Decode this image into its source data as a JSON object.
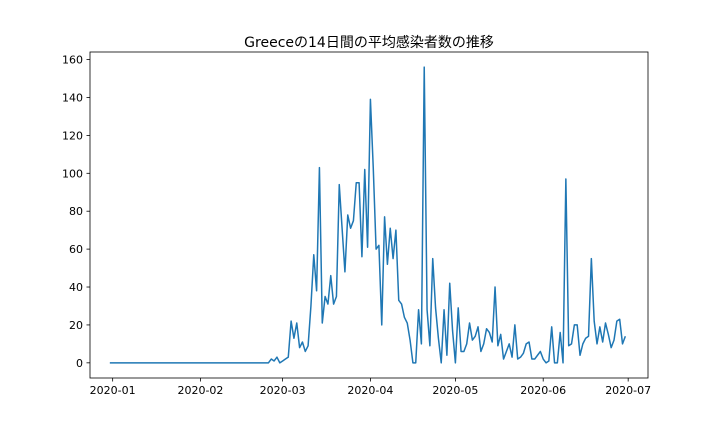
{
  "chart_data": {
    "type": "line",
    "title": "Greeceの14日間の平均感染者数の推移",
    "xlabel": "",
    "ylabel": "",
    "xlim": [
      "2019-12-24",
      "2020-07-08"
    ],
    "ylim": [
      -8,
      164
    ],
    "x_ticks": [
      "2020-01-01",
      "2020-02-01",
      "2020-03-01",
      "2020-04-01",
      "2020-05-01",
      "2020-06-01",
      "2020-07-01"
    ],
    "x_tick_labels": [
      "2020-01",
      "2020-02",
      "2020-03",
      "2020-04",
      "2020-05",
      "2020-06",
      "2020-07"
    ],
    "y_ticks": [
      0,
      20,
      40,
      60,
      80,
      100,
      120,
      140,
      160
    ],
    "grid": false,
    "legend": "none",
    "line_color": "#1f77b4",
    "series": [
      {
        "x": [
          "2019-12-31",
          "2020-02-25",
          "2020-02-26",
          "2020-02-27",
          "2020-02-28",
          "2020-02-29",
          "2020-03-01",
          "2020-03-02",
          "2020-03-03",
          "2020-03-04",
          "2020-03-05",
          "2020-03-06",
          "2020-03-07",
          "2020-03-08",
          "2020-03-09",
          "2020-03-10",
          "2020-03-11",
          "2020-03-12",
          "2020-03-13",
          "2020-03-14",
          "2020-03-15",
          "2020-03-16",
          "2020-03-17",
          "2020-03-18",
          "2020-03-19",
          "2020-03-20",
          "2020-03-21",
          "2020-03-22",
          "2020-03-23",
          "2020-03-24",
          "2020-03-25",
          "2020-03-26",
          "2020-03-27",
          "2020-03-28",
          "2020-03-29",
          "2020-03-30",
          "2020-03-31",
          "2020-04-01",
          "2020-04-02",
          "2020-04-03",
          "2020-04-04",
          "2020-04-05",
          "2020-04-06",
          "2020-04-07",
          "2020-04-08",
          "2020-04-09",
          "2020-04-10",
          "2020-04-11",
          "2020-04-12",
          "2020-04-13",
          "2020-04-14",
          "2020-04-15",
          "2020-04-16",
          "2020-04-17",
          "2020-04-18",
          "2020-04-19",
          "2020-04-20",
          "2020-04-21",
          "2020-04-22",
          "2020-04-23",
          "2020-04-24",
          "2020-04-25",
          "2020-04-26",
          "2020-04-27",
          "2020-04-28",
          "2020-04-29",
          "2020-04-30",
          "2020-05-01",
          "2020-05-02",
          "2020-05-03",
          "2020-05-04",
          "2020-05-05",
          "2020-05-06",
          "2020-05-07",
          "2020-05-08",
          "2020-05-09",
          "2020-05-10",
          "2020-05-11",
          "2020-05-12",
          "2020-05-13",
          "2020-05-14",
          "2020-05-15",
          "2020-05-16",
          "2020-05-17",
          "2020-05-18",
          "2020-05-19",
          "2020-05-20",
          "2020-05-21",
          "2020-05-22",
          "2020-05-23",
          "2020-05-24",
          "2020-05-25",
          "2020-05-26",
          "2020-05-27",
          "2020-05-28",
          "2020-05-29",
          "2020-05-30",
          "2020-05-31",
          "2020-06-01",
          "2020-06-02",
          "2020-06-03",
          "2020-06-04",
          "2020-06-05",
          "2020-06-06",
          "2020-06-07",
          "2020-06-08",
          "2020-06-09",
          "2020-06-10",
          "2020-06-11",
          "2020-06-12",
          "2020-06-13",
          "2020-06-14",
          "2020-06-15",
          "2020-06-16",
          "2020-06-17",
          "2020-06-18",
          "2020-06-19",
          "2020-06-20",
          "2020-06-21",
          "2020-06-22",
          "2020-06-23",
          "2020-06-24",
          "2020-06-25",
          "2020-06-26",
          "2020-06-27",
          "2020-06-28",
          "2020-06-29",
          "2020-06-30"
        ],
        "values": [
          0,
          0,
          2,
          1,
          3,
          0,
          1,
          2,
          3,
          22,
          13,
          21,
          8,
          11,
          6,
          9,
          30,
          57,
          38,
          103,
          21,
          35,
          31,
          46,
          31,
          35,
          94,
          71,
          48,
          78,
          71,
          75,
          95,
          95,
          56,
          102,
          61,
          139,
          103,
          60,
          62,
          20,
          77,
          52,
          71,
          55,
          70,
          33,
          31,
          24,
          21,
          12,
          0,
          0,
          28,
          10,
          156,
          28,
          9,
          55,
          29,
          13,
          0,
          28,
          4,
          42,
          17,
          0,
          29,
          6,
          6,
          10,
          21,
          12,
          14,
          19,
          6,
          10,
          18,
          16,
          11,
          40,
          9,
          15,
          2,
          6,
          10,
          3,
          20,
          2,
          3,
          5,
          10,
          11,
          2,
          2,
          4,
          6,
          2,
          0,
          1,
          19,
          0,
          0,
          16,
          0,
          97,
          9,
          10,
          20,
          20,
          4,
          10,
          13,
          14,
          55,
          22,
          10,
          19,
          11,
          21,
          15,
          8,
          12,
          22,
          23,
          10,
          14
        ]
      }
    ]
  }
}
